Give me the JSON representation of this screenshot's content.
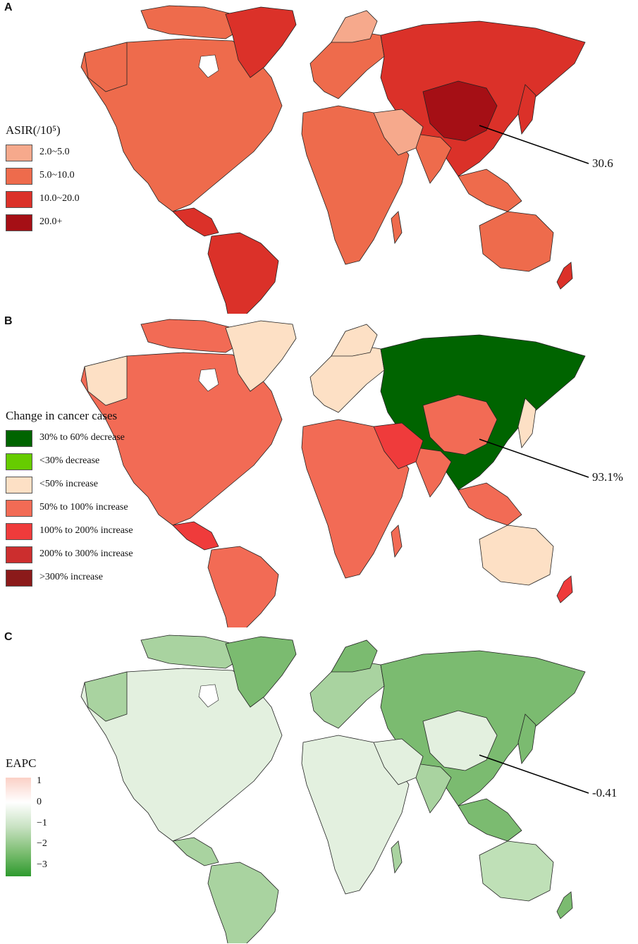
{
  "panels": [
    {
      "letter": "A",
      "legend_title": "ASIR(/10⁵)",
      "legend": [
        {
          "label": "2.0~5.0",
          "color": "#f6a98c"
        },
        {
          "label": "5.0~10.0",
          "color": "#ee6b4c"
        },
        {
          "label": "10.0~20.0",
          "color": "#db3129"
        },
        {
          "label": "20.0+",
          "color": "#a50f15"
        }
      ],
      "callout": "30.6",
      "palette": {
        "base": "#ee6b4c",
        "dark": "#db3129",
        "darkest": "#a50f15",
        "light": "#f6a98c",
        "greenland": "#db3129",
        "australia": "#ee6b4c"
      }
    },
    {
      "letter": "B",
      "legend_title": "Change in cancer cases",
      "legend": [
        {
          "label": "30% to 60% decrease",
          "color": "#006400"
        },
        {
          "label": "<30% decrease",
          "color": "#66cc00"
        },
        {
          "label": "<50% increase",
          "color": "#fde0c5"
        },
        {
          "label": "50% to 100% increase",
          "color": "#f26b55"
        },
        {
          "label": "100% to 200% increase",
          "color": "#ef3b3b"
        },
        {
          "label": "200% to 300% increase",
          "color": "#cc2e2e"
        },
        {
          "label": ">300% increase",
          "color": "#8b1a1a"
        }
      ],
      "callout": "93.1%",
      "palette": {
        "base": "#f26b55",
        "dark": "#ef3b3b",
        "darkest": "#006400",
        "light": "#fde0c5",
        "greenland": "#fde0c5",
        "australia": "#fde0c5"
      }
    },
    {
      "letter": "C",
      "legend_title": "EAPC",
      "colorbar": {
        "ticks": [
          "1",
          "0",
          "−1",
          "−2",
          "−3"
        ],
        "min": -3.5,
        "max": 1.2,
        "colors": [
          "#fbd0c6",
          "#ffffff",
          "#c8e2c2",
          "#7fbf74",
          "#2e9a2e"
        ]
      },
      "callout": "-0.41",
      "palette": {
        "base": "#a9d3a0",
        "dark": "#7bbb70",
        "darkest": "#4f9f4a",
        "light": "#e3f0df",
        "greenland": "#7bbb70",
        "australia": "#bfe0b7"
      }
    }
  ]
}
